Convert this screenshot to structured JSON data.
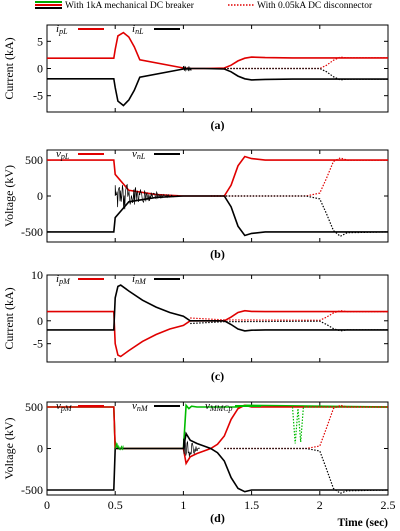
{
  "legend": {
    "solid_label": "With 1kA mechanical DC breaker",
    "dotted_label": "With 0.05kA  DC disconnector",
    "solid_colors": [
      "#00aa00",
      "#e00000",
      "#000000"
    ],
    "dotted_color": "#e00000"
  },
  "colors": {
    "red": "#e00000",
    "black": "#000000",
    "green": "#00bb00"
  },
  "x_axis": {
    "label": "Time (sec)",
    "ticks": [
      "0",
      "0.5",
      "1",
      "1.5",
      "2",
      "2.5"
    ],
    "range": [
      0,
      2.5
    ]
  },
  "chart_data": [
    {
      "type": "line",
      "panel_label": "(a)",
      "ylabel": "Current (kA)",
      "yticks": [
        "5",
        "0",
        "-5"
      ],
      "ylim": [
        -8,
        8
      ],
      "legend": [
        {
          "sym": "i",
          "sub": "pL",
          "color": "#e00000"
        },
        {
          "sym": "i",
          "sub": "nL",
          "color": "#000000"
        }
      ],
      "series": [
        {
          "name": "i_pL",
          "style": "solid",
          "color": "#e00000",
          "x": [
            0,
            0.49,
            0.5,
            0.52,
            0.56,
            0.6,
            0.64,
            0.68,
            1.0,
            1.05,
            1.15,
            1.3,
            1.35,
            1.4,
            1.45,
            1.5,
            1.6,
            1.8,
            2.5
          ],
          "y": [
            1.9,
            1.9,
            3.5,
            6.0,
            6.6,
            5.8,
            4.0,
            1.6,
            0.1,
            0,
            0,
            0.1,
            0.6,
            1.4,
            1.9,
            2.1,
            2.0,
            1.95,
            1.95
          ]
        },
        {
          "name": "i_nL",
          "style": "solid",
          "color": "#000000",
          "x": [
            0,
            0.49,
            0.5,
            0.52,
            0.56,
            0.6,
            0.64,
            0.68,
            1.0,
            1.05,
            1.15,
            1.3,
            1.35,
            1.4,
            1.45,
            1.5,
            1.6,
            1.8,
            2.5
          ],
          "y": [
            -1.9,
            -1.9,
            -3.5,
            -6.0,
            -6.8,
            -5.8,
            -4.0,
            -1.6,
            -0.1,
            0,
            0,
            -0.1,
            -0.6,
            -1.4,
            -1.9,
            -2.1,
            -2.0,
            -1.95,
            -1.95
          ]
        },
        {
          "name": "i_pL dotted",
          "style": "dotted",
          "color": "#e00000",
          "x": [
            1.3,
            1.8,
            2.0,
            2.05,
            2.1,
            2.15,
            2.2,
            2.5
          ],
          "y": [
            0,
            0,
            0,
            0.6,
            1.5,
            2.1,
            1.95,
            1.95
          ]
        },
        {
          "name": "i_nL dotted",
          "style": "dotted",
          "color": "#000000",
          "x": [
            1.3,
            1.8,
            2.0,
            2.05,
            2.1,
            2.15,
            2.2,
            2.5
          ],
          "y": [
            0,
            0,
            0,
            -0.6,
            -1.5,
            -2.1,
            -1.95,
            -1.95
          ]
        }
      ]
    },
    {
      "type": "line",
      "panel_label": "(b)",
      "ylabel": "Voltage (kV)",
      "yticks": [
        "500",
        "0",
        "-500"
      ],
      "ylim": [
        -640,
        640
      ],
      "legend": [
        {
          "sym": "v",
          "sub": "pL",
          "color": "#e00000"
        },
        {
          "sym": "v",
          "sub": "nL",
          "color": "#000000"
        }
      ],
      "series": [
        {
          "name": "v_pL",
          "style": "solid",
          "color": "#e00000",
          "x": [
            0,
            0.49,
            0.5,
            0.6,
            0.8,
            1.0,
            1.2,
            1.3,
            1.35,
            1.4,
            1.45,
            1.5,
            1.6,
            1.8,
            2.5
          ],
          "y": [
            500,
            500,
            300,
            80,
            20,
            0,
            0,
            0,
            150,
            420,
            550,
            520,
            500,
            500,
            500
          ]
        },
        {
          "name": "v_nL",
          "style": "solid",
          "color": "#000000",
          "x": [
            0,
            0.49,
            0.5,
            0.6,
            0.8,
            1.0,
            1.2,
            1.3,
            1.35,
            1.4,
            1.45,
            1.5,
            1.6,
            1.8,
            2.5
          ],
          "y": [
            -500,
            -500,
            -300,
            -80,
            -20,
            0,
            0,
            0,
            -150,
            -420,
            -550,
            -520,
            -500,
            -500,
            -500
          ]
        },
        {
          "name": "v_pL dotted",
          "style": "dotted",
          "color": "#e00000",
          "x": [
            1.2,
            1.9,
            2.0,
            2.05,
            2.1,
            2.15,
            2.2,
            2.5
          ],
          "y": [
            0,
            0,
            40,
            250,
            480,
            530,
            500,
            500
          ]
        },
        {
          "name": "v_nL dotted",
          "style": "dotted",
          "color": "#000000",
          "x": [
            1.2,
            1.9,
            2.0,
            2.05,
            2.1,
            2.15,
            2.2,
            2.5
          ],
          "y": [
            0,
            0,
            -40,
            -250,
            -480,
            -560,
            -510,
            -500
          ]
        }
      ]
    },
    {
      "type": "line",
      "panel_label": "(c)",
      "ylabel": "Current (kA)",
      "yticks": [
        "10",
        "0",
        "-5"
      ],
      "ylim": [
        -9,
        10
      ],
      "legend": [
        {
          "sym": "i",
          "sub": "pM",
          "color": "#e00000"
        },
        {
          "sym": "i",
          "sub": "nM",
          "color": "#000000"
        }
      ],
      "series": [
        {
          "name": "i_pM",
          "style": "solid",
          "color": "#e00000",
          "x": [
            0,
            0.49,
            0.5,
            0.52,
            0.54,
            0.6,
            0.7,
            0.8,
            0.9,
            1.0,
            1.05,
            1.3,
            1.35,
            1.4,
            1.45,
            1.5,
            1.6,
            2.5
          ],
          "y": [
            2.0,
            2.0,
            -5.0,
            -7.5,
            -7.8,
            -6.5,
            -4.5,
            -3.0,
            -1.8,
            -1.0,
            0,
            0,
            0.8,
            1.8,
            2.2,
            2.05,
            2.0,
            2.0
          ]
        },
        {
          "name": "i_nM",
          "style": "solid",
          "color": "#000000",
          "x": [
            0,
            0.49,
            0.5,
            0.52,
            0.54,
            0.6,
            0.7,
            0.8,
            0.9,
            1.0,
            1.05,
            1.3,
            1.35,
            1.4,
            1.45,
            1.5,
            1.6,
            2.5
          ],
          "y": [
            -2.0,
            -2.0,
            5.0,
            7.5,
            7.8,
            6.5,
            4.5,
            3.0,
            1.8,
            1.0,
            0,
            0,
            -0.8,
            -1.8,
            -2.2,
            -2.05,
            -2.0,
            -2.0
          ]
        },
        {
          "name": "i_pM dotted",
          "style": "dotted",
          "color": "#e00000",
          "x": [
            1.05,
            1.3,
            2.0,
            2.05,
            2.1,
            2.15,
            2.2,
            2.5
          ],
          "y": [
            0.6,
            0.2,
            0.1,
            0.8,
            1.7,
            2.2,
            2.0,
            2.0
          ]
        },
        {
          "name": "i_nM dotted",
          "style": "dotted",
          "color": "#000000",
          "x": [
            1.05,
            1.3,
            2.0,
            2.05,
            2.1,
            2.15,
            2.2,
            2.5
          ],
          "y": [
            -0.6,
            -0.2,
            -0.1,
            -0.8,
            -1.7,
            -2.2,
            -2.0,
            -2.0
          ]
        }
      ]
    },
    {
      "type": "line",
      "panel_label": "(d)",
      "ylabel": "Voltage (kV)",
      "yticks": [
        "500",
        "0",
        "-500"
      ],
      "ylim": [
        -560,
        560
      ],
      "legend": [
        {
          "sym": "v",
          "sub": "pM",
          "color": "#e00000"
        },
        {
          "sym": "v",
          "sub": "nM",
          "color": "#000000"
        },
        {
          "sym": "v",
          "sub": "MMCp",
          "color": "#00bb00"
        }
      ],
      "series": [
        {
          "name": "v_MMCp",
          "style": "solid",
          "color": "#00bb00",
          "x": [
            0,
            0.49,
            0.5,
            0.505,
            0.52,
            0.55,
            0.6,
            1.0,
            1.02,
            1.04,
            1.06,
            1.1,
            1.3,
            1.35,
            1.4,
            1.45,
            2.5
          ],
          "y": [
            500,
            500,
            0,
            60,
            0,
            0,
            0,
            0,
            520,
            480,
            510,
            500,
            500,
            500,
            500,
            520,
            500
          ]
        },
        {
          "name": "v_pM",
          "style": "solid",
          "color": "#e00000",
          "x": [
            0,
            0.49,
            0.5,
            0.6,
            1.0,
            1.02,
            1.05,
            1.1,
            1.15,
            1.2,
            1.25,
            1.3,
            1.35,
            1.4,
            1.45,
            1.5,
            2.5
          ],
          "y": [
            500,
            500,
            0,
            0,
            0,
            -180,
            -100,
            -60,
            -30,
            0,
            50,
            150,
            350,
            480,
            520,
            500,
            500
          ]
        },
        {
          "name": "v_nM",
          "style": "solid",
          "color": "#000000",
          "x": [
            0,
            0.49,
            0.5,
            0.6,
            1.0,
            1.02,
            1.05,
            1.1,
            1.15,
            1.2,
            1.25,
            1.3,
            1.35,
            1.4,
            1.45,
            1.5,
            2.5
          ],
          "y": [
            -500,
            -500,
            0,
            0,
            0,
            180,
            100,
            60,
            30,
            0,
            -50,
            -150,
            -350,
            -480,
            -520,
            -500,
            -500
          ]
        },
        {
          "name": "v_pM dotted",
          "style": "dotted",
          "color": "#e00000",
          "x": [
            1.3,
            1.9,
            2.0,
            2.05,
            2.1,
            2.15,
            2.2,
            2.5
          ],
          "y": [
            0,
            0,
            30,
            250,
            480,
            520,
            500,
            500
          ]
        },
        {
          "name": "v_nM dotted",
          "style": "dotted",
          "color": "#000000",
          "x": [
            1.3,
            1.9,
            2.0,
            2.05,
            2.1,
            2.15,
            2.2,
            2.5
          ],
          "y": [
            0,
            0,
            -30,
            -250,
            -480,
            -540,
            -510,
            -500
          ]
        },
        {
          "name": "v_MMCp dotted",
          "style": "dotted",
          "color": "#00bb00",
          "x": [
            1.8,
            1.82,
            1.84,
            1.86,
            1.88,
            2.5
          ],
          "y": [
            500,
            60,
            480,
            80,
            500,
            500
          ]
        }
      ]
    }
  ]
}
